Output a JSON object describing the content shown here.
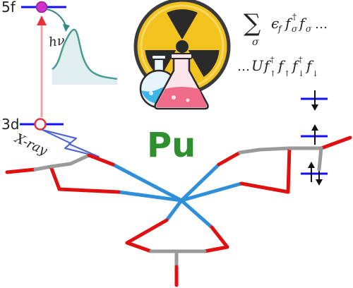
{
  "levels": {
    "upper": "5f",
    "lower": "3d"
  },
  "beam_labels": {
    "emission": "hν",
    "excitation": "X-ray"
  },
  "element_symbol": "Pu",
  "equations": {
    "sum_symbol": "∑",
    "sum_index": "σ",
    "hopping": "ϵ",
    "hopping_sub": "f",
    "hopping_ops": "f",
    "hopping_dag": "†",
    "hopping_spin": "σ",
    "hopping_tail": "f",
    "hopping_tail_spin": "σ",
    "hopping_ellipsis": "…",
    "coulomb_prefix": "…",
    "coulomb_U": "U",
    "coulomb_terms": "f",
    "up": "↑",
    "down": "↓"
  },
  "colors": {
    "level_line": "#1010ff",
    "electron_filled": "#d030d0",
    "arrow_red": "#e8303a",
    "emission_teal": "#2e8a80",
    "pu_green": "#2f8f2f",
    "bond_red": "#e01010",
    "bond_gray": "#9a9a9a",
    "bond_blue": "#2f8fd8"
  },
  "icons": [
    "radiation-icon",
    "flask-icon",
    "spin-down-icon",
    "spin-up-icon",
    "spin-pair-icon"
  ]
}
